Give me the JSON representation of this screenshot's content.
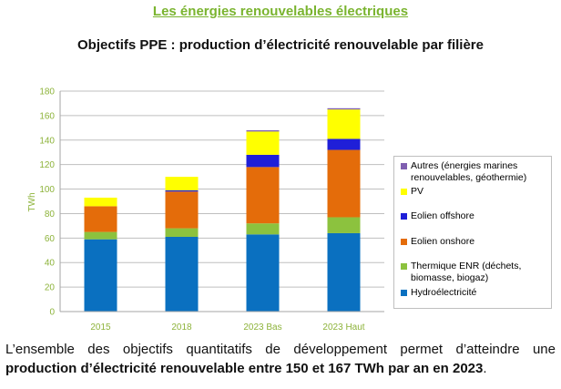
{
  "heading": "Les énergies renouvelables électriques",
  "chart_data": {
    "type": "bar",
    "stacked": true,
    "title": "Objectifs PPE : production d’électricité renouvelable par filière",
    "ylabel": "TWh",
    "ylim": [
      0,
      180
    ],
    "yticks": [
      0,
      20,
      40,
      60,
      80,
      100,
      120,
      140,
      160,
      180
    ],
    "categories": [
      "2015",
      "2018",
      "2023 Bas",
      "2023 Haut"
    ],
    "grid": true,
    "legend_position": "right",
    "series": [
      {
        "name": "Hydroélectricité",
        "color": "#0a70c0",
        "values": [
          59,
          61,
          63,
          64
        ]
      },
      {
        "name": "Thermique ENR (déchets, biomasse, biogaz)",
        "color": "#8cc23e",
        "values": [
          6,
          7,
          9,
          13
        ]
      },
      {
        "name": "Eolien onshore",
        "color": "#e46c0a",
        "values": [
          21,
          30,
          46,
          55
        ]
      },
      {
        "name": "Eolien offshore",
        "color": "#1f1fd8",
        "values": [
          0,
          1,
          10,
          9
        ]
      },
      {
        "name": "PV",
        "color": "#ffff00",
        "values": [
          7,
          11,
          19,
          24
        ]
      },
      {
        "name": "Autres (énergies marines renouvelables, géothermie)",
        "color": "#7f5fb0",
        "values": [
          0,
          0,
          1,
          1
        ]
      }
    ]
  },
  "caption": {
    "part1": "L’ensemble des objectifs quantitatifs de développement permet d’atteindre une ",
    "bold": "production d’électricité renouvelable entre 150 et 167 TWh par an en 2023",
    "part2": "."
  }
}
